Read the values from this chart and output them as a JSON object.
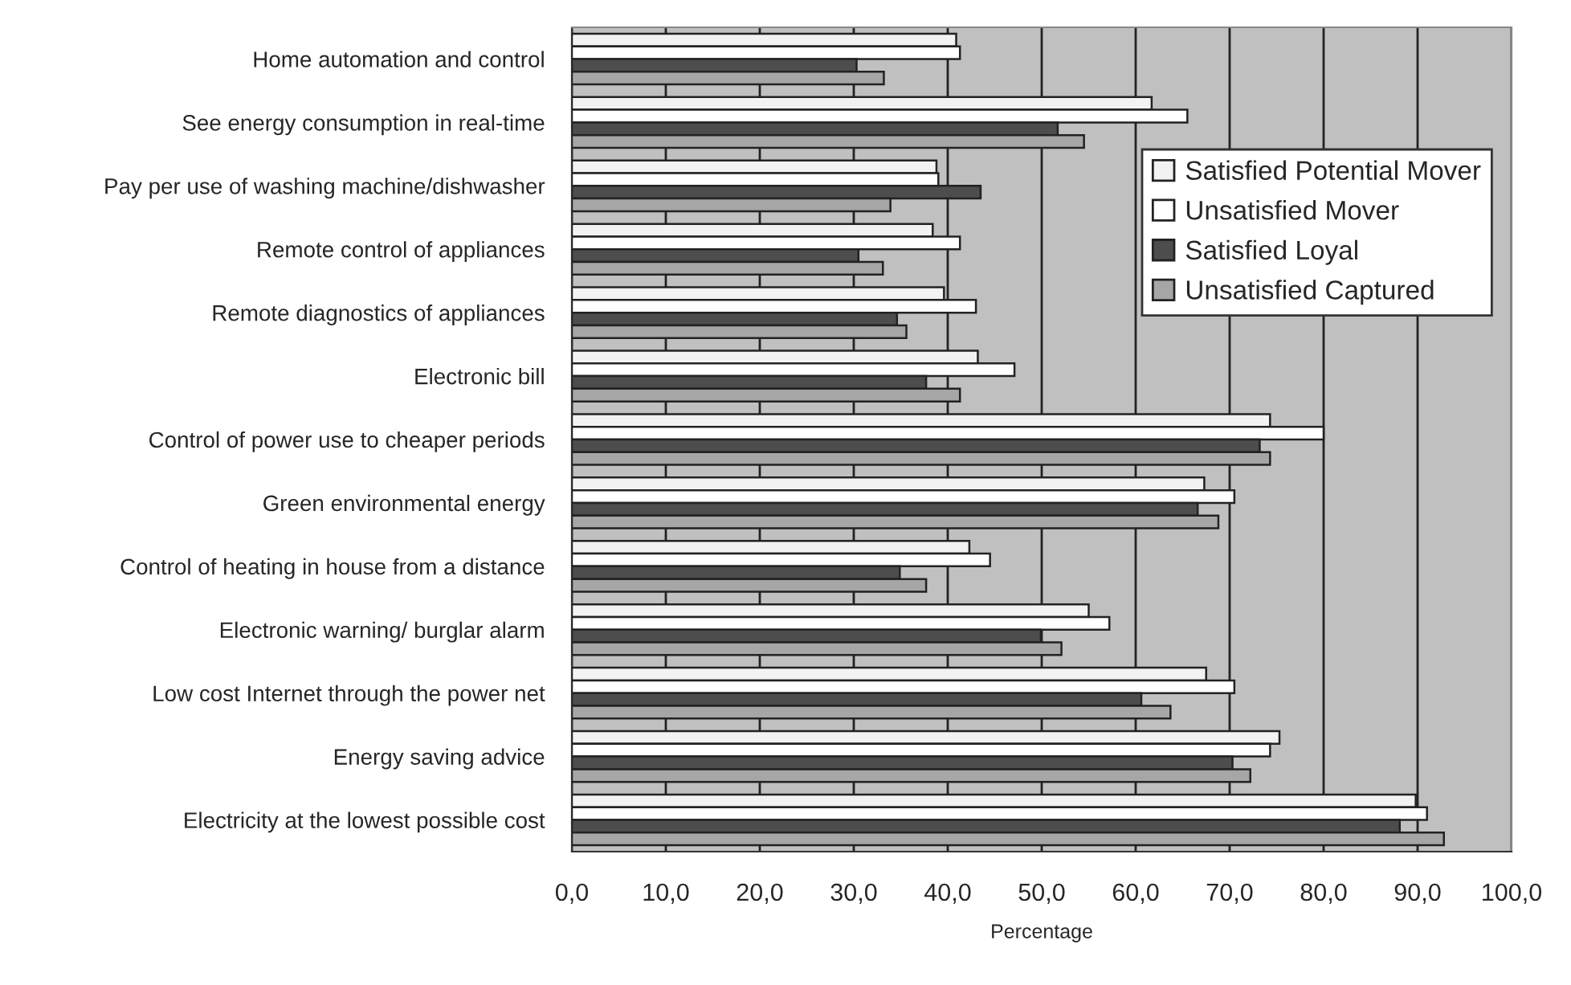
{
  "chart_data": {
    "type": "bar",
    "orientation": "horizontal",
    "xlabel": "Percentage",
    "categories": [
      "Home automation and control",
      "See energy consumption in real-time",
      "Pay per use of washing machine/dishwasher",
      "Remote control of appliances",
      "Remote diagnostics of appliances",
      "Electronic bill",
      "Control of power use to cheaper periods",
      "Green environmental energy",
      "Control of heating in house from a distance",
      "Electronic warning/ burglar alarm",
      "Low cost Internet through the power net",
      "Energy saving advice",
      "Electricity at the lowest possible cost"
    ],
    "series": [
      {
        "name": "Satisfied Potential Mover",
        "color": "#f2f2f2",
        "values": [
          40.9,
          61.7,
          38.8,
          38.4,
          39.6,
          43.2,
          74.3,
          67.3,
          42.3,
          55.0,
          67.5,
          75.3,
          89.8
        ]
      },
      {
        "name": "Unsatisfied Mover",
        "color": "#ffffff",
        "values": [
          41.3,
          65.5,
          39.0,
          41.3,
          43.0,
          47.1,
          80.0,
          70.5,
          44.5,
          57.2,
          70.5,
          74.3,
          91.0
        ]
      },
      {
        "name": "Satisfied Loyal",
        "color": "#4d4d4d",
        "values": [
          30.3,
          51.7,
          43.5,
          30.5,
          34.6,
          37.7,
          73.2,
          66.6,
          34.9,
          49.9,
          60.6,
          70.3,
          88.1
        ]
      },
      {
        "name": "Unsatisfied Captured",
        "color": "#a6a6a6",
        "values": [
          33.2,
          54.5,
          33.9,
          33.1,
          35.6,
          41.3,
          74.3,
          68.8,
          37.7,
          52.1,
          63.7,
          72.2,
          92.8
        ]
      }
    ],
    "xlim": [
      0,
      100
    ],
    "xticks": [
      {
        "value": 0,
        "label": "0,0"
      },
      {
        "value": 10,
        "label": "10,0"
      },
      {
        "value": 20,
        "label": "20,0"
      },
      {
        "value": 30,
        "label": "30,0"
      },
      {
        "value": 40,
        "label": "40,0"
      },
      {
        "value": 50,
        "label": "50,0"
      },
      {
        "value": 60,
        "label": "60,0"
      },
      {
        "value": 70,
        "label": "70,0"
      },
      {
        "value": 80,
        "label": "80,0"
      },
      {
        "value": 90,
        "label": "90,0"
      },
      {
        "value": 100,
        "label": "100,0"
      }
    ],
    "grid": "x",
    "legend": "right"
  }
}
